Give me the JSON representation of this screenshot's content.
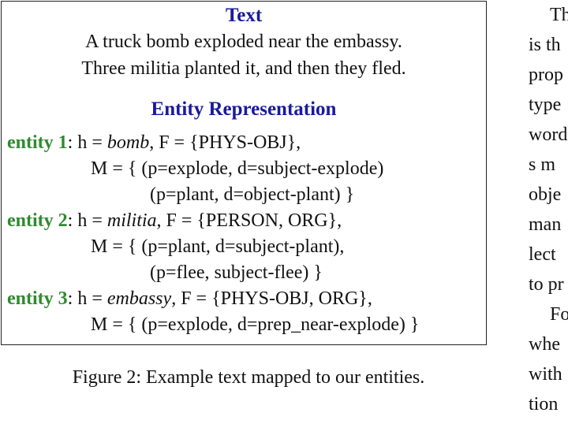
{
  "figure": {
    "text_heading": "Text",
    "text_line_1": "A truck bomb exploded near the embassy.",
    "text_line_2": "Three militia planted it, and then they fled.",
    "entity_heading": "Entity Representation",
    "entities": [
      {
        "label": "entity 1",
        "h_prefix": ": h = ",
        "h_value": "bomb",
        "f_part": ", F = {PHYS-OBJ},",
        "m_line_1": "M = { (p=explode, d=subject-explode)",
        "m_line_2": "(p=plant, d=object-plant) }"
      },
      {
        "label": "entity 2",
        "h_prefix": ": h = ",
        "h_value": "militia",
        "f_part": ", F = {PERSON, ORG},",
        "m_line_1": "M = { (p=plant, d=subject-plant),",
        "m_line_2": "(p=flee, subject-flee) }"
      },
      {
        "label": "entity 3",
        "h_prefix": ": h = ",
        "h_value": "embassy",
        "f_part": ", F = {PHYS-OBJ, ORG},",
        "m_line_1": "M = { (p=explode, d=prep_near-explode) }"
      }
    ]
  },
  "caption": "Figure 2: Example text mapped to our entities.",
  "right_column": [
    "Th",
    "is th",
    "prop",
    "type",
    "word",
    "s m",
    "obje",
    "man",
    "lect",
    "to pr",
    "Fo",
    "whe",
    "with",
    "tion"
  ]
}
